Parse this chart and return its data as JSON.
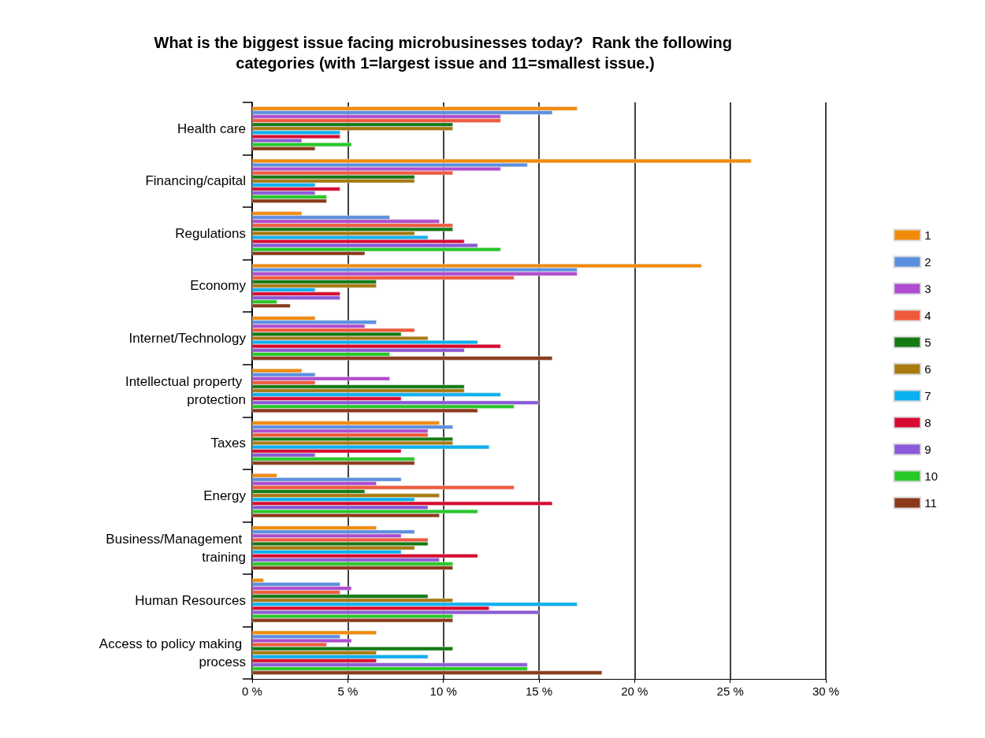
{
  "chart_data": {
    "type": "bar",
    "orientation": "horizontal",
    "title": "What is the biggest issue facing microbusinesses today?  Rank the following categories (with 1=largest issue and 11=smallest issue.)",
    "categories": [
      "Health care",
      "Financing/capital",
      "Regulations",
      "Economy",
      "Internet/Technology",
      "Intellectual property protection",
      "Taxes",
      "Energy",
      "Business/Management training",
      "Human Resources",
      "Access to policy making process"
    ],
    "series": [
      {
        "name": "1",
        "color": "#f28a0a",
        "values": [
          17.0,
          26.1,
          2.6,
          23.5,
          3.3,
          2.6,
          9.8,
          1.3,
          6.5,
          0.6,
          6.5
        ]
      },
      {
        "name": "2",
        "color": "#5b8fe0",
        "values": [
          15.7,
          14.4,
          7.2,
          17.0,
          6.5,
          3.3,
          10.5,
          7.8,
          8.5,
          4.6,
          4.6
        ]
      },
      {
        "name": "3",
        "color": "#b04cd0",
        "values": [
          13.0,
          13.0,
          9.8,
          17.0,
          5.9,
          7.2,
          9.2,
          6.5,
          7.8,
          5.2,
          5.2
        ]
      },
      {
        "name": "4",
        "color": "#f05a3c",
        "values": [
          13.0,
          10.5,
          10.5,
          13.7,
          8.5,
          3.3,
          9.2,
          13.7,
          9.2,
          4.6,
          3.9
        ]
      },
      {
        "name": "5",
        "color": "#147a14",
        "values": [
          10.5,
          8.5,
          10.5,
          6.5,
          7.8,
          11.1,
          10.5,
          5.9,
          9.2,
          9.2,
          10.5
        ]
      },
      {
        "name": "6",
        "color": "#a87a10",
        "values": [
          10.5,
          8.5,
          8.5,
          6.5,
          9.2,
          11.1,
          10.5,
          9.8,
          8.5,
          10.5,
          6.5
        ]
      },
      {
        "name": "7",
        "color": "#0ab0f0",
        "values": [
          4.6,
          3.3,
          9.2,
          3.3,
          11.8,
          13.0,
          12.4,
          8.5,
          7.8,
          17.0,
          9.2
        ]
      },
      {
        "name": "8",
        "color": "#d80a32",
        "values": [
          4.6,
          4.6,
          11.1,
          4.6,
          13.0,
          7.8,
          7.8,
          15.7,
          11.8,
          12.4,
          6.5
        ]
      },
      {
        "name": "9",
        "color": "#8a5ad8",
        "values": [
          2.6,
          3.3,
          11.8,
          4.6,
          11.1,
          15.0,
          3.3,
          9.2,
          9.8,
          15.0,
          14.4
        ]
      },
      {
        "name": "10",
        "color": "#28c828",
        "values": [
          5.2,
          3.9,
          13.0,
          1.3,
          7.2,
          13.7,
          8.5,
          11.8,
          10.5,
          10.5,
          14.4
        ]
      },
      {
        "name": "11",
        "color": "#8a3a1a",
        "values": [
          3.3,
          3.9,
          5.9,
          2.0,
          15.7,
          11.8,
          8.5,
          9.8,
          10.5,
          10.5,
          18.3
        ]
      }
    ],
    "xlim": [
      0,
      30
    ],
    "xticks": [
      {
        "value": 0,
        "label": "0 %"
      },
      {
        "value": 5,
        "label": "5 %"
      },
      {
        "value": 10,
        "label": "10 %"
      },
      {
        "value": 15,
        "label": "15 %"
      },
      {
        "value": 20,
        "label": "20 %"
      },
      {
        "value": 25,
        "label": "25 %"
      },
      {
        "value": 30,
        "label": "30 %"
      }
    ],
    "grid": "x",
    "legend": "right"
  }
}
